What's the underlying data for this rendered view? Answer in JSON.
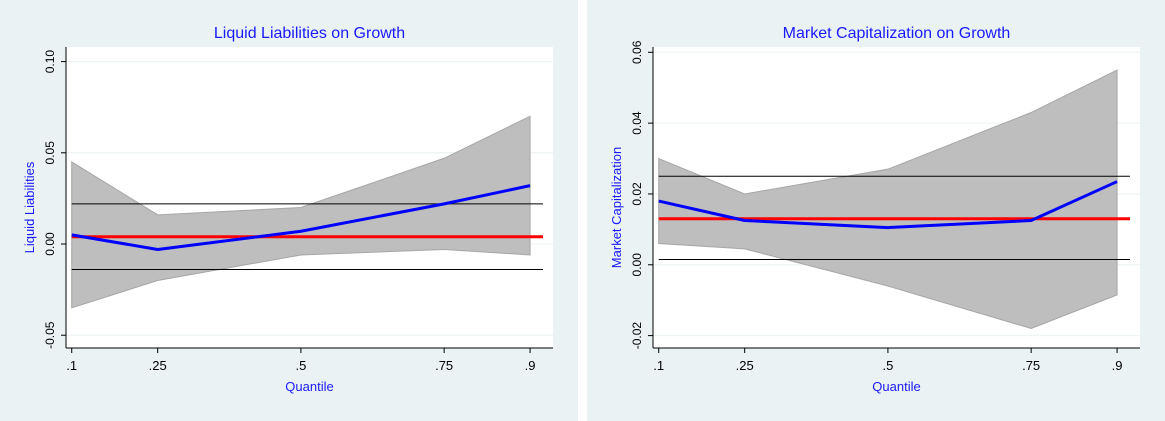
{
  "colors": {
    "outer_bg": "#EAF2F3",
    "plot_bg": "#FFFFFF",
    "band_fill": "#BEBEBE",
    "band_stroke": "#A6A6A6",
    "estimate_line": "#0000FF",
    "ols_line": "#FF0000",
    "ci_line": "#000000",
    "title": "#1A1AFF",
    "label": "#1A1AFF",
    "grid": "#EAF2F3"
  },
  "chart_data": [
    {
      "type": "line",
      "title": "Liquid Liabilities on Growth",
      "xlabel": "Quantile",
      "ylabel": "Liquid Liabilities",
      "xlim": [
        0.09,
        0.94
      ],
      "ylim": [
        -0.057,
        0.108
      ],
      "x": [
        0.1,
        0.25,
        0.5,
        0.75,
        0.9
      ],
      "x_tick_labels": [
        ".1",
        ".25",
        ".5",
        ".75",
        ".9"
      ],
      "y_ticks": [
        -0.05,
        0,
        0.05,
        0.1
      ],
      "y_tick_labels": [
        "-0.05",
        "0.00",
        "0.05",
        "0.10"
      ],
      "grid": true,
      "series": [
        {
          "role": "estimate",
          "values": [
            0.005,
            -0.003,
            0.007,
            0.022,
            0.032
          ]
        },
        {
          "role": "band_upper",
          "values": [
            0.045,
            0.016,
            0.02,
            0.047,
            0.07
          ]
        },
        {
          "role": "band_lower",
          "values": [
            -0.035,
            -0.02,
            -0.006,
            -0.003,
            -0.006
          ]
        }
      ],
      "hlines": [
        {
          "role": "ols",
          "y": 0.004
        },
        {
          "role": "ci_upper",
          "y": 0.022
        },
        {
          "role": "ci_lower",
          "y": -0.014
        }
      ]
    },
    {
      "type": "line",
      "title": "Market Capitalization on Growth",
      "xlabel": "Quantile",
      "ylabel": "Market Capitalization",
      "xlim": [
        0.09,
        0.94
      ],
      "ylim": [
        -0.0235,
        0.0615
      ],
      "x": [
        0.1,
        0.25,
        0.5,
        0.75,
        0.9
      ],
      "x_tick_labels": [
        ".1",
        ".25",
        ".5",
        ".75",
        ".9"
      ],
      "y_ticks": [
        -0.02,
        0,
        0.02,
        0.04,
        0.06
      ],
      "y_tick_labels": [
        "-0.02",
        "0.00",
        "0.02",
        "0.04",
        "0.06"
      ],
      "grid": true,
      "series": [
        {
          "role": "estimate",
          "values": [
            0.018,
            0.0125,
            0.0105,
            0.0125,
            0.0235
          ]
        },
        {
          "role": "band_upper",
          "values": [
            0.03,
            0.02,
            0.027,
            0.043,
            0.055
          ]
        },
        {
          "role": "band_lower",
          "values": [
            0.006,
            0.0045,
            -0.006,
            -0.018,
            -0.0085
          ]
        }
      ],
      "hlines": [
        {
          "role": "ols",
          "y": 0.013
        },
        {
          "role": "ci_upper",
          "y": 0.025
        },
        {
          "role": "ci_lower",
          "y": 0.0015
        }
      ]
    }
  ]
}
